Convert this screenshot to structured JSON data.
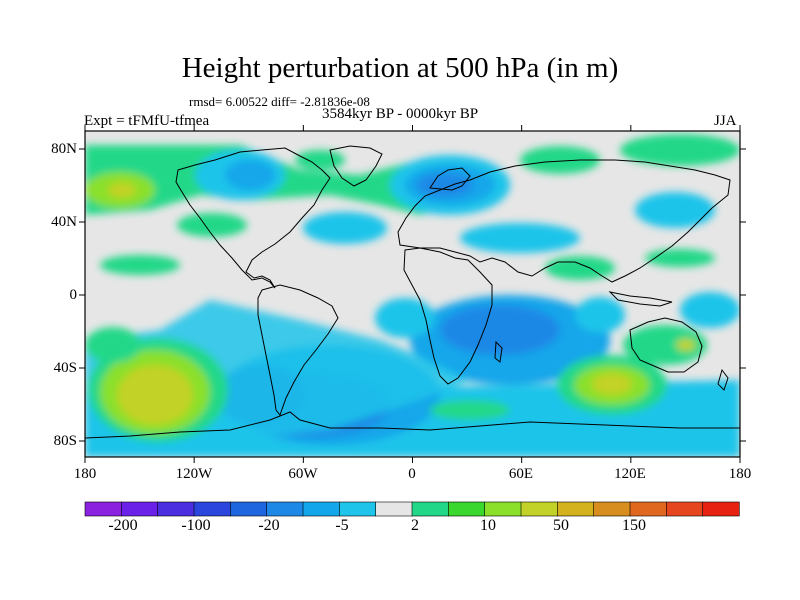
{
  "title": "Height perturbation at 500 hPa (in m)",
  "stats": "rmsd= 6.00522 diff= -2.81836e-08",
  "period": "3584kyr BP - 0000kyr BP",
  "experiment": "Expt = tFMfU-tfmea",
  "season": "JJA",
  "lat_ticks": [
    "80N",
    "40N",
    "0",
    "40S",
    "80S"
  ],
  "lon_ticks": [
    "180",
    "120W",
    "60W",
    "0",
    "60E",
    "120E",
    "180"
  ],
  "colorbar": {
    "labels": [
      "-200",
      "-100",
      "-20",
      "-5",
      "2",
      "10",
      "50",
      "150"
    ],
    "colors": [
      "#8a22e0",
      "#6a22e8",
      "#4a2ee0",
      "#2a46dc",
      "#1e66e0",
      "#1e88e6",
      "#14a6ea",
      "#1ec4ea",
      "#e6e6e6",
      "#22d888",
      "#3ad82e",
      "#8ae02a",
      "#c2d228",
      "#d4b21e",
      "#d88e1e",
      "#e0681e",
      "#e6461e",
      "#e82210"
    ]
  },
  "colors": {
    "neutral": "#e6e6e6",
    "coast": "#000000"
  }
}
